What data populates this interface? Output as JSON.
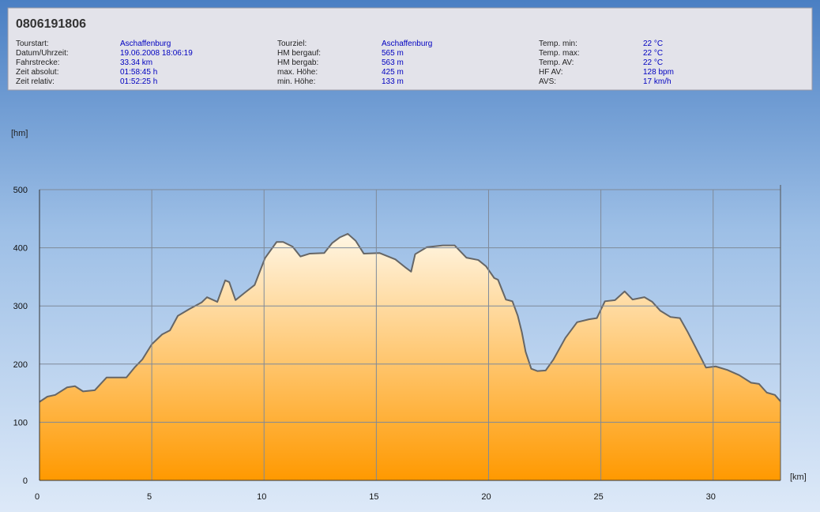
{
  "header": {
    "title": "0806191806",
    "info": [
      [
        {
          "label": "Tourstart:",
          "value": "Aschaffenburg"
        },
        {
          "label": "Datum/Uhrzeit:",
          "value": "19.06.2008 18:06:19"
        },
        {
          "label": "Fahrstrecke:",
          "value": "33.34 km"
        },
        {
          "label": "Zeit absolut:",
          "value": "01:58:45 h"
        },
        {
          "label": "Zeit relativ:",
          "value": "01:52:25 h"
        }
      ],
      [
        {
          "label": "Tourziel:",
          "value": "Aschaffenburg"
        },
        {
          "label": "HM bergauf:",
          "value": "565 m"
        },
        {
          "label": "HM bergab:",
          "value": "563 m"
        },
        {
          "label": "max. Höhe:",
          "value": "425 m"
        },
        {
          "label": "min. Höhe:",
          "value": "133 m"
        }
      ],
      [
        {
          "label": "Temp. min:",
          "value": "22 °C"
        },
        {
          "label": "Temp. max:",
          "value": "22 °C"
        },
        {
          "label": "Temp. AV:",
          "value": "22 °C"
        },
        {
          "label": "HF AV:",
          "value": "128 bpm"
        },
        {
          "label": "AVS:",
          "value": "17 km/h"
        }
      ]
    ]
  },
  "chart_data": {
    "type": "area",
    "y_label": "[hm]",
    "x_label": "[km]",
    "color": "#ff9900",
    "line_color": "#666666",
    "grid": true,
    "x": [
      0,
      0.35,
      0.7,
      1.23,
      1.58,
      1.94,
      2.46,
      2.99,
      3.52,
      3.87,
      4.23,
      4.58,
      5.0,
      5.46,
      5.81,
      6.16,
      6.69,
      7.22,
      7.46,
      7.92,
      8.27,
      8.45,
      8.73,
      9.15,
      9.58,
      10.04,
      10.56,
      10.85,
      11.27,
      11.62,
      12.04,
      12.68,
      13.03,
      13.38,
      13.73,
      14.08,
      14.44,
      15.14,
      15.85,
      16.27,
      16.55,
      16.73,
      17.25,
      17.96,
      18.49,
      19.01,
      19.54,
      19.89,
      20.25,
      20.42,
      20.77,
      21.06,
      21.3,
      21.48,
      21.65,
      21.9,
      22.18,
      22.54,
      22.89,
      23.42,
      23.94,
      24.47,
      24.82,
      25.18,
      25.63,
      26.06,
      26.41,
      26.94,
      27.29,
      27.64,
      28.1,
      28.52,
      28.87,
      29.23,
      29.68,
      30.11,
      30.63,
      31.16,
      31.69,
      32.04,
      32.39,
      32.75,
      33.0
    ],
    "values": [
      135,
      144,
      147,
      160,
      162,
      153,
      155,
      177,
      177,
      177,
      194,
      208,
      234,
      251,
      258,
      283,
      295,
      306,
      315,
      307,
      344,
      341,
      310,
      323,
      336,
      382,
      410,
      410,
      402,
      385,
      390,
      391,
      408,
      418,
      424,
      412,
      390,
      391,
      380,
      367,
      359,
      389,
      401,
      404,
      404,
      383,
      379,
      368,
      348,
      345,
      311,
      308,
      283,
      255,
      221,
      192,
      188,
      189,
      208,
      245,
      272,
      277,
      279,
      308,
      310,
      325,
      311,
      315,
      307,
      292,
      281,
      279,
      255,
      228,
      194,
      196,
      190,
      181,
      168,
      166,
      151,
      147,
      136
    ],
    "xlim": [
      0,
      33
    ],
    "ylim": [
      0,
      500
    ],
    "xticks": [
      0,
      5,
      10,
      15,
      20,
      25,
      30
    ],
    "yticks": [
      0,
      100,
      200,
      300,
      400,
      500
    ]
  }
}
